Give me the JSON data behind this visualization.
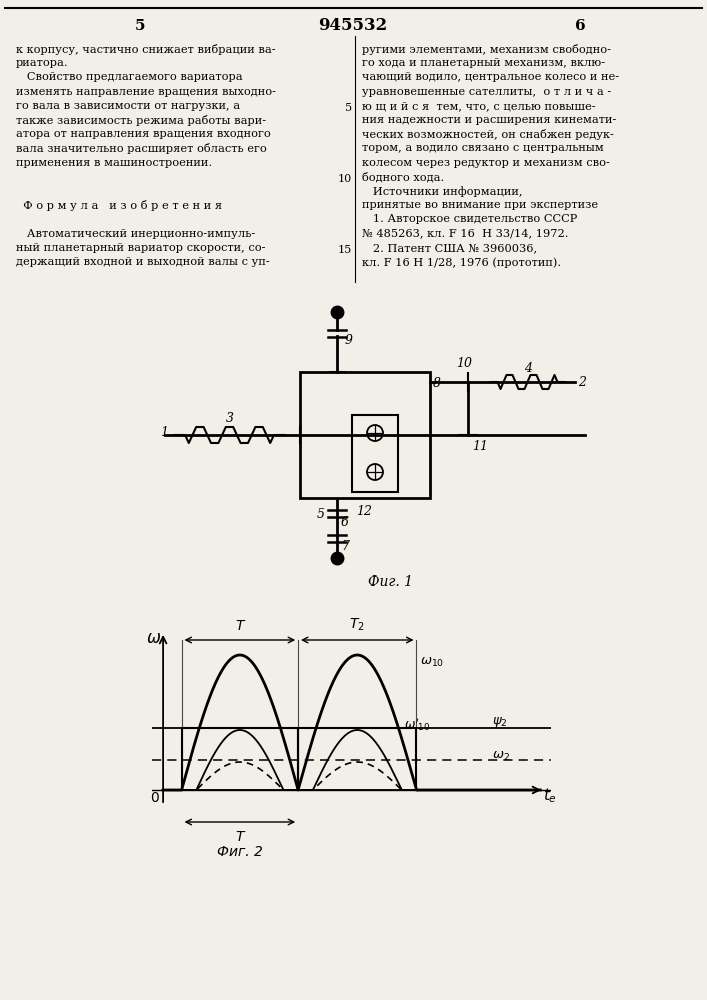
{
  "bg_color": "#f2efe9",
  "title_text": "945532",
  "page_numbers": [
    "5",
    "6"
  ],
  "left_column_lines": [
    "к корпусу, частично снижает вибрации ва-",
    "риатора.",
    "   Свойство предлагаемого вариатора",
    "изменять направление вращения выходно-",
    "го вала в зависимости от нагрузки, а",
    "также зависимость режима работы вари-",
    "атора от направления вращения входного",
    "вала значительно расширяет область его",
    "применения в машиностроении.",
    "",
    "",
    "  Ф о р м у л а   и з о б р е т е н и я",
    "",
    "   Автоматический инерционно-импуль-",
    "ный планетарный вариатор скорости, со-",
    "держащий входной и выходной валы с уп-"
  ],
  "right_column_lines": [
    "ругими элементами, механизм свободно-",
    "го хода и планетарный механизм, вклю-",
    "чающий водило, центральное колесо и не-",
    "уравновешенные сателлиты,  о т л и ч а -",
    "ю щ и й с я  тем, что, с целью повыше-",
    "ния надежности и расширения кинемати-",
    "ческих возможностей, он снабжен редук-",
    "тором, а водило связано с центральным",
    "колесом через редуктор и механизм сво-",
    "бодного хода.",
    "   Источники информации,",
    "принятые во внимание при экспертизе",
    "   1. Авторское свидетельство СССР",
    "№ 485263, кл. F 16  Н 33/14, 1972.",
    "   2. Патент США № 3960036,",
    "кл. F 16 Н 1/28, 1976 (прототип)."
  ],
  "fig1_caption": "Фиг. 1",
  "fig2_caption": "Фиг. 2"
}
